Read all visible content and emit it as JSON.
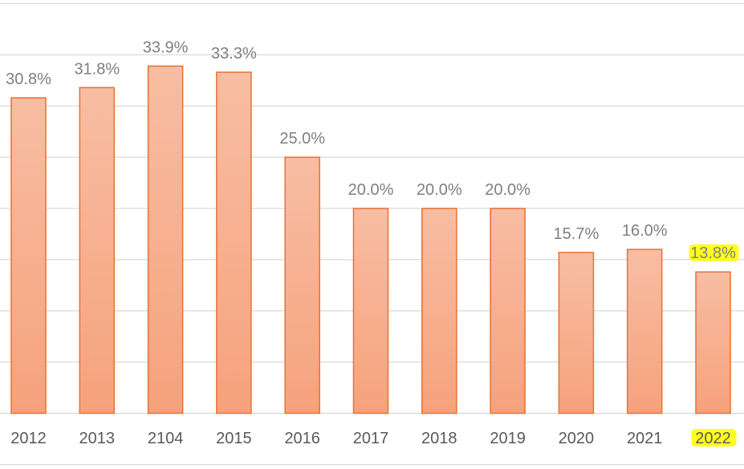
{
  "chart_data": {
    "type": "bar",
    "title": "",
    "xlabel": "",
    "ylabel": "",
    "categories": [
      "2012",
      "2013",
      "2104",
      "2015",
      "2016",
      "2017",
      "2018",
      "2019",
      "2020",
      "2021",
      "2022"
    ],
    "values": [
      30.8,
      31.8,
      33.9,
      33.3,
      25.0,
      20.0,
      20.0,
      20.0,
      15.7,
      16.0,
      13.8
    ],
    "labels": [
      "30.8%",
      "31.8%",
      "33.9%",
      "33.3%",
      "25.0%",
      "20.0%",
      "20.0%",
      "20.0%",
      "15.7%",
      "16.0%",
      "13.8%"
    ],
    "ylim": [
      0,
      40
    ],
    "grid": true,
    "highlighted_categories": [
      "2022"
    ],
    "highlighted_labels": [
      "13.8%"
    ]
  },
  "colors": {
    "bar_fill_top": "#f8bda3",
    "bar_fill_bottom": "#f6a27c",
    "bar_border": "#e9773b",
    "gridline": "#d9d9d9",
    "highlight": "#ffff1e",
    "label_text": "#7f7f7f",
    "tick_text": "#595959"
  }
}
